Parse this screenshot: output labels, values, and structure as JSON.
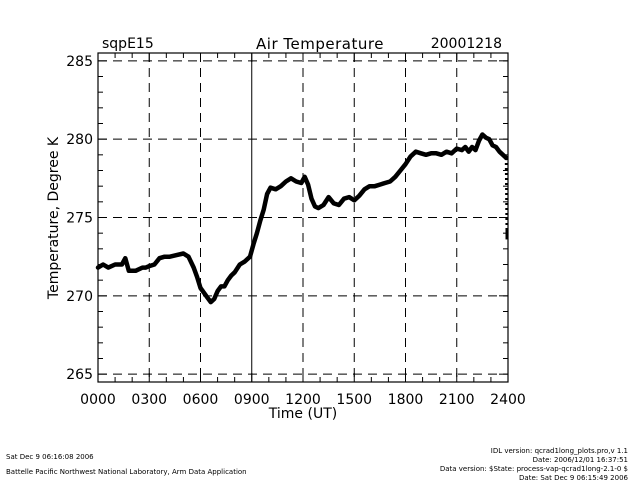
{
  "header": {
    "site": "sqpE15",
    "title": "Air Temperature",
    "date": "20001218"
  },
  "footer": {
    "left_date": "Sat Dec  9 06:16:08 2006",
    "left_org": "Battelle Pacific Northwest National Laboratory, Arm Data Application",
    "idl_version": "IDL version: qcrad1long_plots.pro,v 1.1",
    "idl_date": "Date: 2006/12/01 16:37:51",
    "data_version": "Data version: $State: process-vap-qcrad1long-2.1-0 $",
    "data_date": "Date: Sat Dec  9 06:15:49 2006"
  },
  "chart_data": {
    "type": "line",
    "title": "Air Temperature",
    "xlabel": "Time (UT)",
    "ylabel": "Temperature, Degree K",
    "xlim": [
      0,
      24
    ],
    "ylim": [
      264.5,
      285.5
    ],
    "x_ticks": [
      0,
      3,
      6,
      9,
      12,
      15,
      18,
      21,
      24
    ],
    "x_tick_labels": [
      "0000",
      "0300",
      "0600",
      "0900",
      "1200",
      "1500",
      "1800",
      "2100",
      "2400"
    ],
    "y_ticks": [
      265,
      270,
      275,
      280,
      285
    ],
    "y_tick_labels": [
      "265",
      "270",
      "275",
      "280",
      "285"
    ],
    "grid": "dashed",
    "series": [
      {
        "name": "Air Temperature",
        "x": [
          0,
          0.3,
          0.6,
          1.0,
          1.4,
          1.6,
          1.8,
          2.2,
          2.6,
          2.8,
          3.0,
          3.3,
          3.6,
          3.9,
          4.2,
          4.6,
          5.0,
          5.3,
          5.6,
          5.8,
          6.0,
          6.2,
          6.4,
          6.6,
          6.8,
          7.0,
          7.2,
          7.4,
          7.6,
          7.8,
          8.0,
          8.3,
          8.6,
          8.9,
          9.1,
          9.3,
          9.5,
          9.7,
          9.9,
          10.1,
          10.4,
          10.7,
          11.0,
          11.3,
          11.6,
          11.9,
          12.1,
          12.3,
          12.5,
          12.7,
          12.9,
          13.2,
          13.5,
          13.8,
          14.1,
          14.4,
          14.7,
          15.0,
          15.3,
          15.6,
          15.9,
          16.2,
          16.5,
          16.8,
          17.1,
          17.4,
          17.7,
          18.0,
          18.3,
          18.6,
          18.9,
          19.2,
          19.5,
          19.8,
          20.1,
          20.4,
          20.7,
          21.0,
          21.3,
          21.5,
          21.7,
          21.9,
          22.1,
          22.3,
          22.5,
          22.7,
          22.9,
          23.1,
          23.3,
          23.5,
          23.7,
          23.9,
          24.0
        ],
        "values": [
          271.8,
          272.0,
          271.8,
          272.0,
          272.0,
          272.4,
          271.6,
          271.6,
          271.8,
          271.8,
          271.9,
          272.0,
          272.4,
          272.5,
          272.5,
          272.6,
          272.7,
          272.5,
          271.8,
          271.2,
          270.5,
          270.2,
          269.9,
          269.6,
          269.8,
          270.3,
          270.6,
          270.6,
          271.0,
          271.3,
          271.5,
          272.0,
          272.2,
          272.5,
          273.3,
          274.0,
          274.8,
          275.5,
          276.5,
          276.9,
          276.8,
          277.0,
          277.3,
          277.5,
          277.3,
          277.2,
          277.6,
          277.1,
          276.2,
          275.7,
          275.6,
          275.8,
          276.3,
          275.9,
          275.8,
          276.2,
          276.3,
          276.1,
          276.4,
          276.8,
          277.0,
          277.0,
          277.1,
          277.2,
          277.3,
          277.6,
          278.0,
          278.4,
          278.9,
          279.2,
          279.1,
          279.0,
          279.1,
          279.1,
          279.0,
          279.2,
          279.1,
          279.4,
          279.3,
          279.5,
          279.2,
          279.5,
          279.3,
          279.9,
          280.3,
          280.1,
          280.0,
          279.6,
          279.5,
          279.2,
          279.0,
          278.8,
          273.6
        ]
      }
    ]
  }
}
